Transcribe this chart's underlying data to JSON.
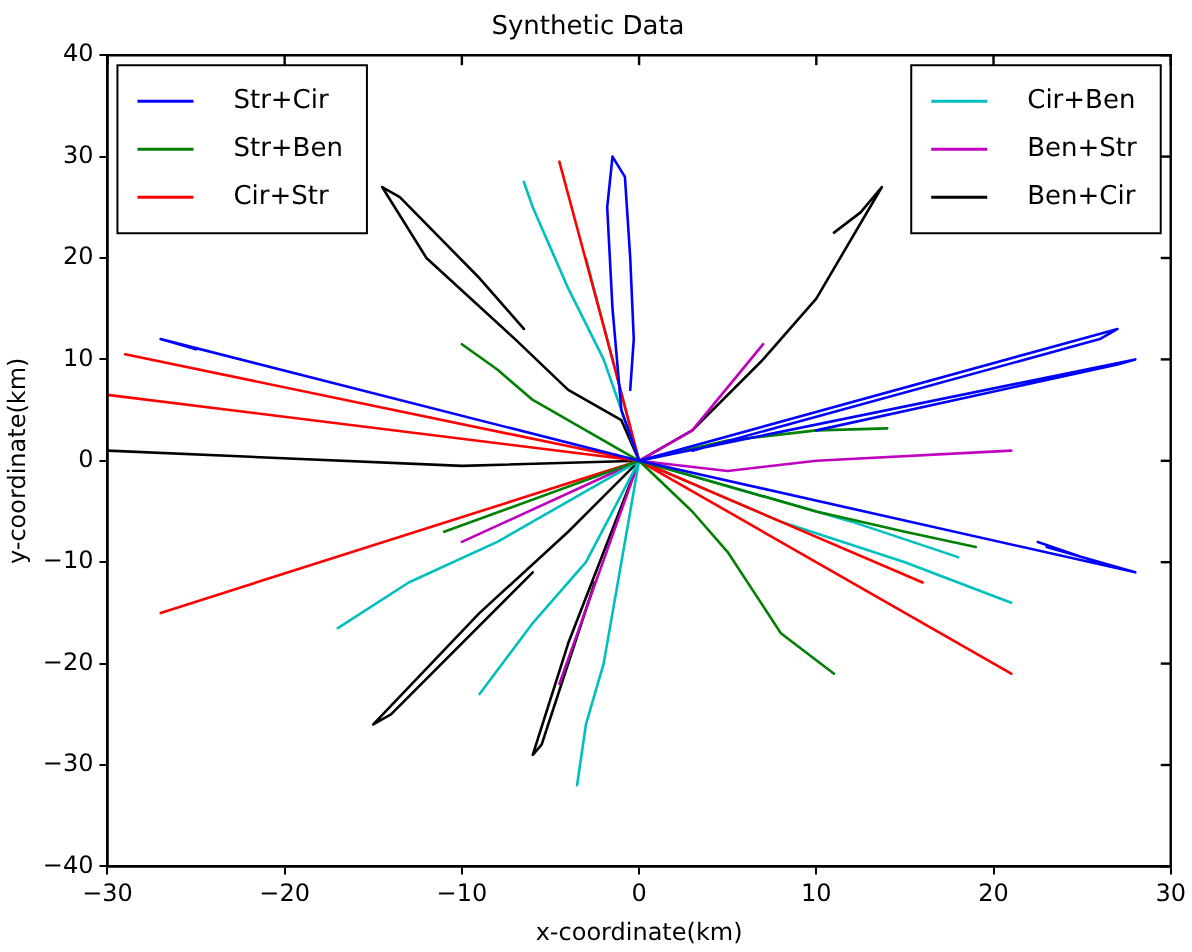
{
  "chart_data": {
    "type": "line",
    "title": "Synthetic Data",
    "xlabel": "x-coordinate(km)",
    "ylabel": "y-coordinate(km)",
    "xlim": [
      -30,
      30
    ],
    "ylim": [
      -40,
      40
    ],
    "xticks": [
      -30,
      -20,
      -10,
      0,
      10,
      20,
      30
    ],
    "yticks": [
      -40,
      -30,
      -20,
      -10,
      0,
      10,
      20,
      30,
      40
    ],
    "grid": false,
    "legend": "top",
    "marker": "none",
    "line_style": "solid",
    "series": [
      {
        "name": "Str+Cir",
        "color": "#0000ff",
        "x": [
          0,
          -1,
          -1.5,
          -1.8,
          -1.5,
          -0.8,
          -0.5,
          -0.3,
          -0.5,
          null,
          0,
          -27,
          -25,
          null,
          0,
          27,
          26,
          3,
          null,
          0,
          28,
          27,
          10,
          null,
          0,
          28,
          27,
          23,
          null,
          22.5,
          25
        ],
        "values": [
          0,
          5,
          15,
          25,
          30,
          28,
          20,
          12,
          7,
          null,
          0,
          12,
          11,
          null,
          0,
          13,
          12,
          1,
          null,
          0,
          10,
          9.5,
          3,
          null,
          0,
          -11,
          -10.5,
          -8.5,
          null,
          -8,
          -9.5
        ]
      },
      {
        "name": "Str+Ben",
        "color": "#008000",
        "x": [
          0,
          -3,
          -6,
          -8,
          -10,
          null,
          0,
          5,
          10,
          14,
          null,
          0,
          10,
          15,
          19,
          null,
          0,
          3,
          5,
          6.5,
          8,
          11,
          null,
          0,
          -11
        ],
        "values": [
          0,
          3,
          6,
          9,
          11.5,
          null,
          0,
          2,
          3,
          3.2,
          null,
          0,
          -5,
          -7,
          -8.5,
          null,
          0,
          -5,
          -9,
          -13,
          -17,
          -21,
          null,
          0,
          -7
        ]
      },
      {
        "name": "Cir+Str",
        "color": "#ff0000",
        "x": [
          0,
          -1.5,
          -4.5,
          null,
          0,
          -29,
          null,
          0,
          -30,
          null,
          0,
          -27,
          null,
          0,
          21,
          null,
          0,
          16
        ],
        "values": [
          0,
          10,
          29.5,
          null,
          0,
          10.5,
          null,
          0,
          6.5,
          null,
          0,
          -15,
          null,
          0,
          -21,
          null,
          0,
          -12
        ]
      },
      {
        "name": "Cir+Ben",
        "color": "#00bfbf",
        "x": [
          0,
          -2,
          -4,
          -5,
          -6,
          -6.5,
          null,
          0,
          -3,
          null,
          0,
          -8,
          -13,
          -17,
          null,
          0,
          -3,
          -6,
          -9,
          null,
          0,
          -1,
          -2,
          -3,
          -3.5,
          null,
          0,
          8,
          15,
          21,
          null,
          0,
          12,
          18
        ],
        "values": [
          0,
          10,
          17,
          21,
          25,
          27.5,
          null,
          0,
          20,
          null,
          0,
          -8,
          -12,
          -16.5,
          null,
          0,
          -10,
          -16,
          -23,
          null,
          0,
          -10,
          -20,
          -26,
          -32,
          null,
          0,
          -6,
          -10,
          -14,
          null,
          0,
          -6,
          -9.5
        ]
      },
      {
        "name": "Ben+Str",
        "color": "#bf00bf",
        "x": [
          0,
          5,
          10,
          21,
          null,
          0,
          -10,
          null,
          0,
          -4.5,
          null,
          0,
          3,
          7
        ],
        "values": [
          0,
          -1,
          0,
          1,
          null,
          0,
          -8,
          null,
          0,
          -22,
          null,
          0,
          3,
          11.5
        ]
      },
      {
        "name": "Ben+Cir",
        "color": "#000000",
        "x": [
          0,
          -1,
          -4,
          -7,
          -12,
          -14.5,
          -13.5,
          -9,
          -6.5,
          null,
          0,
          3,
          7,
          10,
          13.7,
          12.5,
          11,
          null,
          0,
          -10,
          -30,
          null,
          0,
          -4,
          -9,
          -15,
          -14,
          -6,
          null,
          0,
          -2,
          -4,
          -6,
          -5.5,
          -2.5
        ],
        "values": [
          0,
          4,
          7,
          12,
          20,
          27,
          26,
          18,
          13,
          null,
          0,
          3,
          10,
          16,
          27,
          24.5,
          22.5,
          null,
          0,
          -0.5,
          1,
          null,
          0,
          -7,
          -15,
          -26,
          -25,
          -11,
          null,
          0,
          -9,
          -18,
          -29,
          -28,
          -12
        ]
      }
    ]
  }
}
